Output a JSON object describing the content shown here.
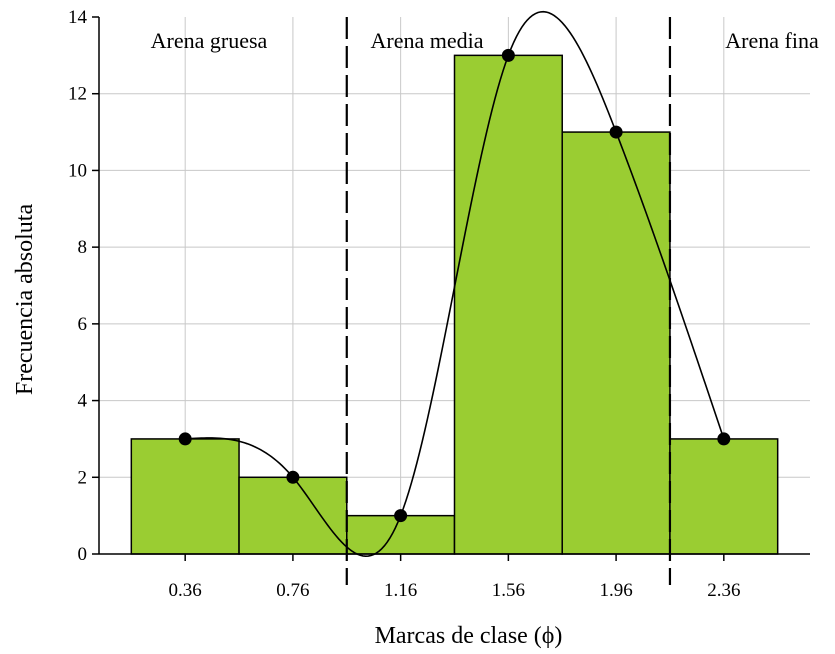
{
  "chart_data": {
    "type": "bar",
    "categories": [
      "0.36",
      "0.76",
      "1.16",
      "1.56",
      "1.96",
      "2.36"
    ],
    "x": [
      0.36,
      0.76,
      1.16,
      1.56,
      1.96,
      2.36
    ],
    "values": [
      3,
      2,
      1,
      13,
      11,
      3
    ],
    "points": [
      {
        "x": 0.36,
        "y": 3
      },
      {
        "x": 0.76,
        "y": 2
      },
      {
        "x": 1.16,
        "y": 1
      },
      {
        "x": 1.56,
        "y": 13
      },
      {
        "x": 1.96,
        "y": 11
      },
      {
        "x": 2.36,
        "y": 3
      }
    ],
    "xlabel": "Marcas de clase (ϕ)",
    "ylabel": "Frecuencia absoluta",
    "ylim": [
      0,
      14
    ],
    "yticks": [
      "0",
      "2",
      "4",
      "6",
      "8",
      "10",
      "12",
      "14"
    ],
    "xlim": [
      0.04,
      2.68
    ],
    "grid": true,
    "bar_color": "#9ACD32",
    "curve_color": "#000000",
    "point_color": "#000000",
    "regions": [
      {
        "label": "Arena gruesa",
        "x_start": 0.04,
        "x_end": 0.96
      },
      {
        "label": "Arena media",
        "x_start": 0.96,
        "x_end": 2.16
      },
      {
        "label": "Arena fina",
        "x_start": 2.16,
        "x_end": 2.68
      }
    ],
    "region_dividers": [
      0.96,
      2.16
    ]
  }
}
